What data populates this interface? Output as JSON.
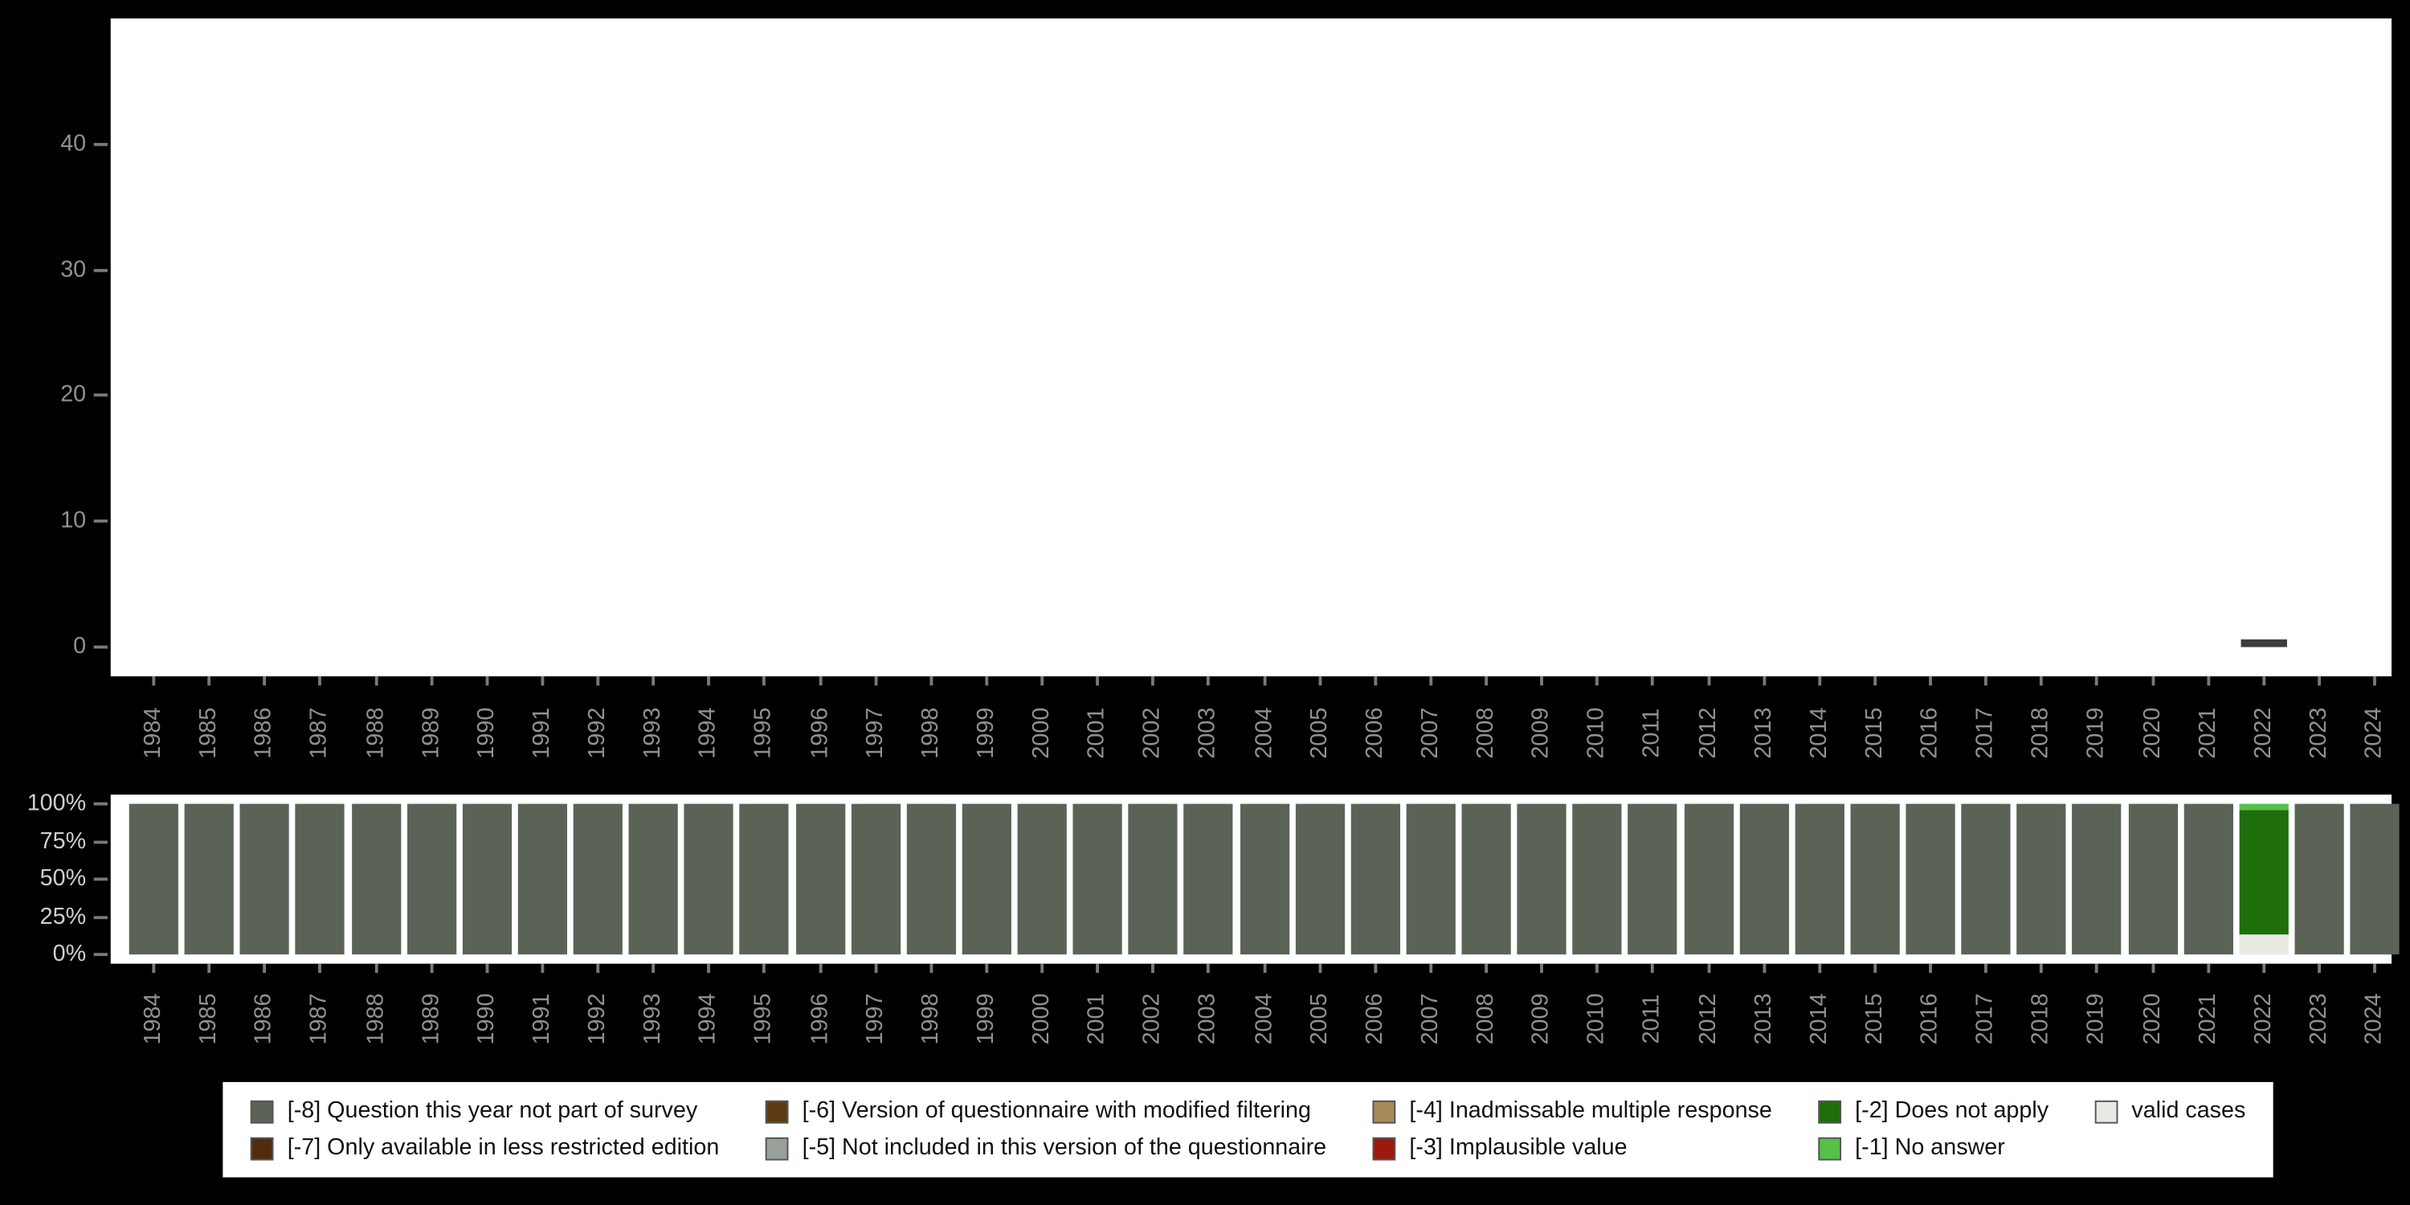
{
  "colors": {
    "background": "#000000",
    "panel": "#ffffff",
    "axis_label": "#919191",
    "pct_label": "#cfcfcf",
    "bar": "#3d3d3d",
    "-8": "#5b6357",
    "-7": "#4f2d0e",
    "-6": "#5f3b13",
    "-5": "#99a09a",
    "-4": "#a88a58",
    "-3": "#9c1a0c",
    "-2": "#1e6e0b",
    "-1": "#56c04a",
    "valid": "#e9e9e4"
  },
  "chart_data": [
    {
      "type": "bar",
      "title": "",
      "xlabel": "",
      "ylabel": "",
      "x": [
        1984,
        1985,
        1986,
        1987,
        1988,
        1989,
        1990,
        1991,
        1992,
        1993,
        1994,
        1995,
        1996,
        1997,
        1998,
        1999,
        2000,
        2001,
        2002,
        2003,
        2004,
        2005,
        2006,
        2007,
        2008,
        2009,
        2010,
        2011,
        2012,
        2013,
        2014,
        2015,
        2016,
        2017,
        2018,
        2019,
        2020,
        2021,
        2022,
        2023,
        2024
      ],
      "values": {
        "2022": 0.6
      },
      "yticks": [
        0,
        10,
        20,
        30,
        40
      ],
      "ylim": [
        0,
        50
      ],
      "grid": false,
      "legend_position": "none"
    },
    {
      "type": "stacked-bar-percent",
      "title": "",
      "xlabel": "",
      "ylabel": "",
      "x": [
        1984,
        1985,
        1986,
        1987,
        1988,
        1989,
        1990,
        1991,
        1992,
        1993,
        1994,
        1995,
        1996,
        1997,
        1998,
        1999,
        2000,
        2001,
        2002,
        2003,
        2004,
        2005,
        2006,
        2007,
        2008,
        2009,
        2010,
        2011,
        2012,
        2013,
        2014,
        2015,
        2016,
        2017,
        2018,
        2019,
        2020,
        2021,
        2022,
        2023,
        2024
      ],
      "yticks": [
        "0%",
        "25%",
        "50%",
        "75%",
        "100%"
      ],
      "ylim": [
        0,
        100
      ],
      "composition": {
        "default": [
          [
            "-8",
            100
          ]
        ],
        "2022": [
          [
            "valid",
            13
          ],
          [
            "-2",
            83
          ],
          [
            "-1",
            4
          ]
        ]
      },
      "grid": false,
      "legend_position": "bottom"
    }
  ],
  "legend": {
    "items": [
      {
        "code": "-8",
        "label": "[-8] Question this year not part of survey"
      },
      {
        "code": "-6",
        "label": "[-6] Version of questionnaire with modified filtering"
      },
      {
        "code": "-4",
        "label": "[-4] Inadmissable multiple response"
      },
      {
        "code": "-2",
        "label": "[-2] Does not apply"
      },
      {
        "code": "valid",
        "label": "valid cases"
      },
      {
        "code": "-7",
        "label": "[-7] Only available in less restricted edition"
      },
      {
        "code": "-5",
        "label": "[-5] Not included in this version of the questionnaire"
      },
      {
        "code": "-3",
        "label": "[-3] Implausible value"
      },
      {
        "code": "-1",
        "label": "[-1] No answer"
      }
    ]
  }
}
